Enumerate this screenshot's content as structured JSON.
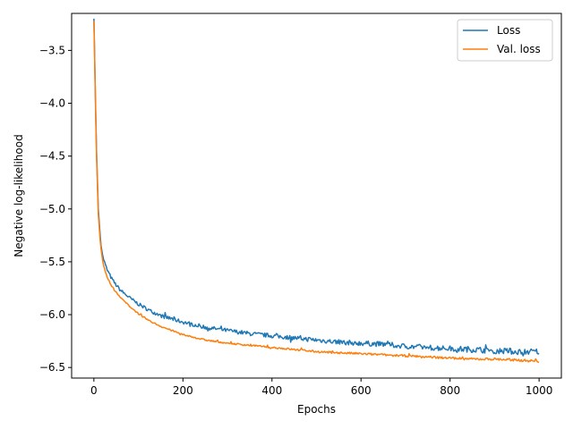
{
  "chart_data": {
    "type": "line",
    "title": "",
    "xlabel": "Epochs",
    "ylabel": "Negative log-likelihood",
    "xlim": [
      -50,
      1050
    ],
    "ylim": [
      -6.6,
      -3.15
    ],
    "xticks": [
      0,
      200,
      400,
      600,
      800,
      1000
    ],
    "yticks": [
      -6.5,
      -6.0,
      -5.5,
      -5.0,
      -4.5,
      -4.0,
      -3.5
    ],
    "xtick_labels": [
      "0",
      "200",
      "400",
      "600",
      "800",
      "1000"
    ],
    "ytick_labels": [
      "−6.5",
      "−6.0",
      "−5.5",
      "−5.0",
      "−4.5",
      "−4.0",
      "−3.5"
    ],
    "grid": false,
    "legend_position": "top-right",
    "series": [
      {
        "name": "Loss",
        "color": "#1f77b4",
        "noise": 0.015,
        "x": [
          0,
          5,
          10,
          15,
          20,
          25,
          30,
          40,
          50,
          60,
          80,
          100,
          125,
          150,
          200,
          250,
          300,
          350,
          400,
          450,
          500,
          550,
          600,
          650,
          700,
          750,
          800,
          850,
          900,
          950,
          1000
        ],
        "y": [
          -3.2,
          -4.3,
          -5.0,
          -5.3,
          -5.45,
          -5.52,
          -5.58,
          -5.66,
          -5.72,
          -5.77,
          -5.84,
          -5.9,
          -5.96,
          -6.01,
          -6.07,
          -6.12,
          -6.15,
          -6.18,
          -6.2,
          -6.22,
          -6.24,
          -6.26,
          -6.27,
          -6.28,
          -6.3,
          -6.31,
          -6.32,
          -6.33,
          -6.34,
          -6.35,
          -6.35
        ]
      },
      {
        "name": "Val. loss",
        "color": "#ff7f0e",
        "noise": 0.006,
        "x": [
          0,
          5,
          10,
          15,
          20,
          25,
          30,
          40,
          50,
          60,
          80,
          100,
          125,
          150,
          200,
          250,
          300,
          350,
          400,
          450,
          500,
          550,
          600,
          650,
          700,
          750,
          800,
          850,
          900,
          950,
          1000
        ],
        "y": [
          -3.22,
          -4.35,
          -5.05,
          -5.35,
          -5.5,
          -5.58,
          -5.65,
          -5.73,
          -5.79,
          -5.84,
          -5.92,
          -5.99,
          -6.06,
          -6.11,
          -6.19,
          -6.24,
          -6.27,
          -6.29,
          -6.31,
          -6.33,
          -6.35,
          -6.36,
          -6.37,
          -6.38,
          -6.39,
          -6.4,
          -6.41,
          -6.42,
          -6.42,
          -6.43,
          -6.44
        ]
      }
    ]
  }
}
